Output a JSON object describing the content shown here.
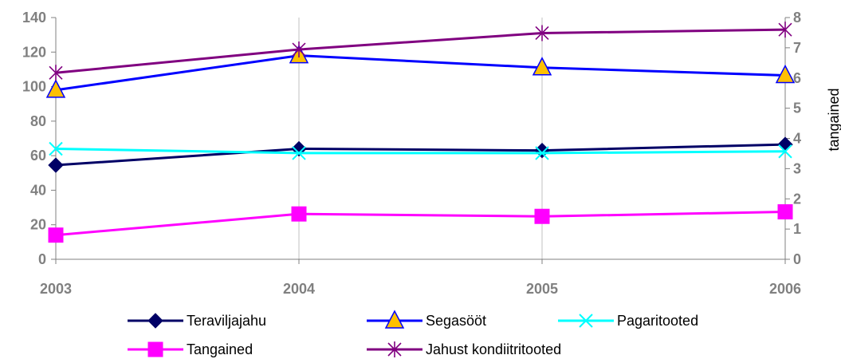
{
  "chart_data": {
    "type": "line",
    "x": [
      "2003",
      "2004",
      "2005",
      "2006"
    ],
    "xlabel": "",
    "ylabel": "",
    "ylabel_secondary": "tangained",
    "ylim": [
      0,
      140
    ],
    "ylim_secondary": [
      0,
      8
    ],
    "yticks": [
      "0",
      "20",
      "40",
      "60",
      "80",
      "100",
      "120",
      "140"
    ],
    "yticks_secondary": [
      "0",
      "1",
      "2",
      "3",
      "4",
      "5",
      "6",
      "7",
      "8"
    ],
    "grid": "vertical",
    "legend_position": "bottom",
    "series": [
      {
        "name": "Teraviljajahu",
        "axis": "primary",
        "values": [
          54.5,
          64,
          63,
          66.5
        ],
        "color": "#000066",
        "marker": "diamond"
      },
      {
        "name": "Segasööt",
        "axis": "primary",
        "values": [
          98,
          118,
          111,
          106.5
        ],
        "color": "#0000ff",
        "marker": "triangle",
        "marker_fill": "#ffc000"
      },
      {
        "name": "Pagaritooted",
        "axis": "primary",
        "values": [
          64,
          61.5,
          61.5,
          62.5
        ],
        "color": "#00ffff",
        "marker": "x"
      },
      {
        "name": "Tangained",
        "axis": "secondary",
        "values": [
          0.8,
          1.5,
          1.42,
          1.57
        ],
        "color": "#ff00ff",
        "marker": "square"
      },
      {
        "name": "Jahust kondiitritooted",
        "axis": "primary",
        "values": [
          108,
          121.5,
          131,
          133
        ],
        "color": "#800080",
        "marker": "star"
      }
    ]
  }
}
